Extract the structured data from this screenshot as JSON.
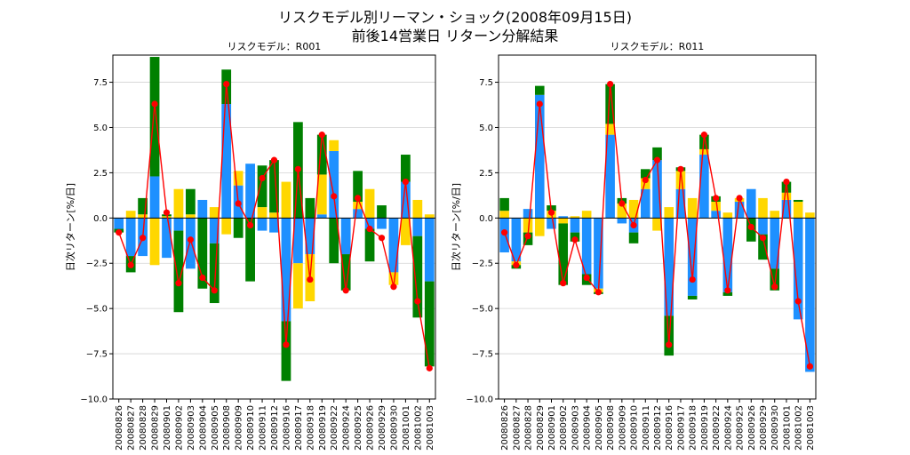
{
  "title_line1": "リスクモデル別リーマン・ショック(2008年09月15日)",
  "title_line2": "前後14営業日 リターン分解結果",
  "colors": {
    "market": "#1e90ff",
    "style": "#ffd700",
    "residual": "#008000",
    "total": "#ff0000",
    "grid": "#d3d3d3"
  },
  "chart_data": [
    {
      "type": "bar",
      "stacked": true,
      "title": "リスクモデル：R001",
      "ylabel": "日次リターン[%/日]",
      "ylim": [
        -10,
        9
      ],
      "yticks": [
        -10.0,
        -7.5,
        -5.0,
        -2.5,
        0.0,
        2.5,
        5.0,
        7.5
      ],
      "ytick_labels": [
        "−10.0",
        "−7.5",
        "−5.0",
        "−2.5",
        "0.0",
        "2.5",
        "5.0",
        "7.5"
      ],
      "grid": true,
      "categories": [
        "20080826",
        "20080827",
        "20080828",
        "20080829",
        "20080901",
        "20080902",
        "20080903",
        "20080904",
        "20080905",
        "20080908",
        "20080909",
        "20080910",
        "20080911",
        "20080912",
        "20080916",
        "20080917",
        "20080918",
        "20080919",
        "20080922",
        "20080924",
        "20080925",
        "20080926",
        "20080929",
        "20080930",
        "20081001",
        "20081002",
        "20081003"
      ],
      "series": [
        {
          "name": "blue",
          "values": [
            -0.6,
            -2.1,
            -2.1,
            2.3,
            -2.2,
            -0.7,
            -2.8,
            1.0,
            -1.4,
            6.3,
            1.8,
            3.0,
            -0.7,
            -0.8,
            -5.7,
            -2.5,
            -2.0,
            0.2,
            3.7,
            -2.0,
            0.5,
            -0.6,
            -0.6,
            -3.0,
            2.0,
            -1.0,
            -3.5
          ]
        },
        {
          "name": "yellow",
          "values": [
            0.0,
            0.4,
            0.2,
            -2.6,
            0.1,
            1.6,
            0.2,
            0.0,
            0.6,
            -0.9,
            0.8,
            0.0,
            0.6,
            0.3,
            2.0,
            -2.5,
            -2.6,
            2.2,
            0.6,
            0.0,
            0.4,
            1.6,
            0.0,
            -0.7,
            -1.5,
            1.0,
            0.2
          ]
        },
        {
          "name": "green",
          "values": [
            -0.2,
            -0.9,
            0.9,
            6.6,
            0.1,
            -4.5,
            1.4,
            -3.9,
            -3.3,
            1.9,
            -1.1,
            -3.5,
            2.3,
            2.9,
            -3.3,
            5.3,
            1.1,
            2.2,
            -2.5,
            -2.0,
            1.7,
            -1.8,
            0.7,
            0.0,
            1.5,
            -4.5,
            -4.7
          ]
        },
        {
          "name": "total",
          "values": [
            -0.8,
            -2.6,
            -1.1,
            6.3,
            0.3,
            -3.6,
            -1.2,
            -3.3,
            -4.0,
            7.4,
            0.8,
            -0.4,
            2.2,
            3.2,
            -7.0,
            2.7,
            -3.4,
            4.6,
            1.2,
            -4.0,
            1.1,
            -0.6,
            -1.1,
            -3.8,
            2.0,
            -4.6,
            -8.3
          ]
        }
      ]
    },
    {
      "type": "bar",
      "stacked": true,
      "title": "リスクモデル：R011",
      "ylabel": "日次リターン[%/日]",
      "ylim": [
        -10,
        9
      ],
      "yticks": [
        -10.0,
        -7.5,
        -5.0,
        -2.5,
        0.0,
        2.5,
        5.0,
        7.5
      ],
      "ytick_labels": [
        "−10.0",
        "−7.5",
        "−5.0",
        "−2.5",
        "0.0",
        "2.5",
        "5.0",
        "7.5"
      ],
      "grid": true,
      "categories": [
        "20080826",
        "20080827",
        "20080828",
        "20080829",
        "20080901",
        "20080902",
        "20080903",
        "20080904",
        "20080905",
        "20080908",
        "20080909",
        "20080910",
        "20080911",
        "20080912",
        "20080916",
        "20080917",
        "20080918",
        "20080919",
        "20080922",
        "20080924",
        "20080925",
        "20080926",
        "20080929",
        "20080930",
        "20081001",
        "20081002",
        "20081003"
      ],
      "series": [
        {
          "name": "blue",
          "values": [
            -1.9,
            -2.4,
            0.5,
            6.8,
            -0.6,
            0.1,
            -0.8,
            -3.1,
            -3.9,
            4.6,
            -0.3,
            -0.8,
            1.6,
            3.2,
            -5.4,
            1.6,
            -4.3,
            3.5,
            0.4,
            -4.1,
            0.9,
            1.6,
            -0.9,
            -2.8,
            1.0,
            -5.6,
            -8.5
          ]
        },
        {
          "name": "yellow",
          "values": [
            0.4,
            -0.2,
            -0.8,
            -1.0,
            0.4,
            -0.3,
            0.1,
            0.4,
            -0.2,
            0.6,
            0.8,
            1.0,
            0.6,
            -0.7,
            0.6,
            1.0,
            1.1,
            0.3,
            0.5,
            0.3,
            0.2,
            0.0,
            1.1,
            0.4,
            0.4,
            0.9,
            0.3
          ]
        },
        {
          "name": "green",
          "values": [
            0.7,
            -0.2,
            -0.7,
            0.5,
            0.3,
            -3.4,
            -0.5,
            -0.6,
            -0.1,
            2.2,
            0.3,
            -0.6,
            0.5,
            0.7,
            -2.2,
            0.2,
            -0.2,
            0.8,
            0.3,
            -0.2,
            0.0,
            -1.3,
            -1.4,
            -1.2,
            0.6,
            0.1,
            0.0
          ]
        },
        {
          "name": "total",
          "values": [
            -0.8,
            -2.6,
            -1.0,
            6.3,
            0.3,
            -3.6,
            -1.2,
            -3.3,
            -4.1,
            7.4,
            0.8,
            -0.4,
            2.1,
            3.2,
            -7.0,
            2.7,
            -3.4,
            4.6,
            1.1,
            -4.0,
            1.1,
            -0.5,
            -1.1,
            -3.8,
            2.0,
            -4.6,
            -8.2
          ]
        }
      ]
    }
  ]
}
